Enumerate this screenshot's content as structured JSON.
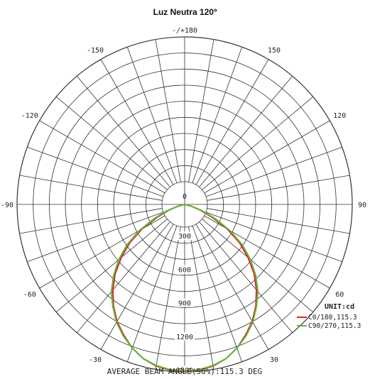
{
  "chart_data": {
    "type": "polar-line",
    "title": "Luz Neutra 120º",
    "angle_labels": [
      {
        "angle": 180,
        "label": "-/+180"
      },
      {
        "angle": -150,
        "label": "-150"
      },
      {
        "angle": 150,
        "label": "150"
      },
      {
        "angle": -120,
        "label": "-120"
      },
      {
        "angle": 120,
        "label": "120"
      },
      {
        "angle": -90,
        "label": "-90"
      },
      {
        "angle": 90,
        "label": "90"
      },
      {
        "angle": -60,
        "label": "-60"
      },
      {
        "angle": 60,
        "label": "60"
      },
      {
        "angle": -30,
        "label": "-30"
      },
      {
        "angle": 30,
        "label": "30"
      },
      {
        "angle": 0,
        "label": "0"
      }
    ],
    "radial_ticks": [
      0,
      300,
      600,
      900,
      1200,
      1500
    ],
    "radial_max": 1500,
    "unit_label": "UNIT:cd",
    "series": [
      {
        "name": "C0/180,115.3",
        "color": "#e0262b",
        "angles": [
          -75,
          -70,
          -65,
          -60,
          -55,
          -50,
          -45,
          -40,
          -35,
          -30,
          -25,
          -20,
          -15,
          -10,
          -5,
          0,
          5,
          10,
          15,
          20,
          25,
          30,
          35,
          40,
          45,
          50,
          55,
          60,
          65,
          70,
          75
        ],
        "values": [
          60,
          150,
          270,
          440,
          600,
          740,
          880,
          1000,
          1110,
          1210,
          1290,
          1370,
          1430,
          1470,
          1490,
          1500,
          1490,
          1470,
          1430,
          1370,
          1290,
          1210,
          1110,
          1000,
          880,
          740,
          600,
          440,
          270,
          150,
          60
        ]
      },
      {
        "name": "C90/270,115.3",
        "color": "#5cb83a",
        "angles": [
          -75,
          -70,
          -65,
          -60,
          -55,
          -50,
          -45,
          -40,
          -35,
          -30,
          -25,
          -20,
          -15,
          -10,
          -5,
          0,
          5,
          10,
          15,
          20,
          25,
          30,
          35,
          40,
          45,
          50,
          55,
          60,
          65,
          70,
          75
        ],
        "values": [
          70,
          170,
          300,
          470,
          630,
          770,
          900,
          1020,
          1120,
          1220,
          1300,
          1370,
          1430,
          1465,
          1485,
          1490,
          1485,
          1465,
          1430,
          1370,
          1300,
          1220,
          1120,
          1020,
          900,
          770,
          630,
          470,
          300,
          170,
          70
        ]
      }
    ],
    "footer": "AVERAGE BEAM ANGLE(50%):115.3 DEG",
    "grid": true,
    "legend_position": "bottom-right"
  }
}
